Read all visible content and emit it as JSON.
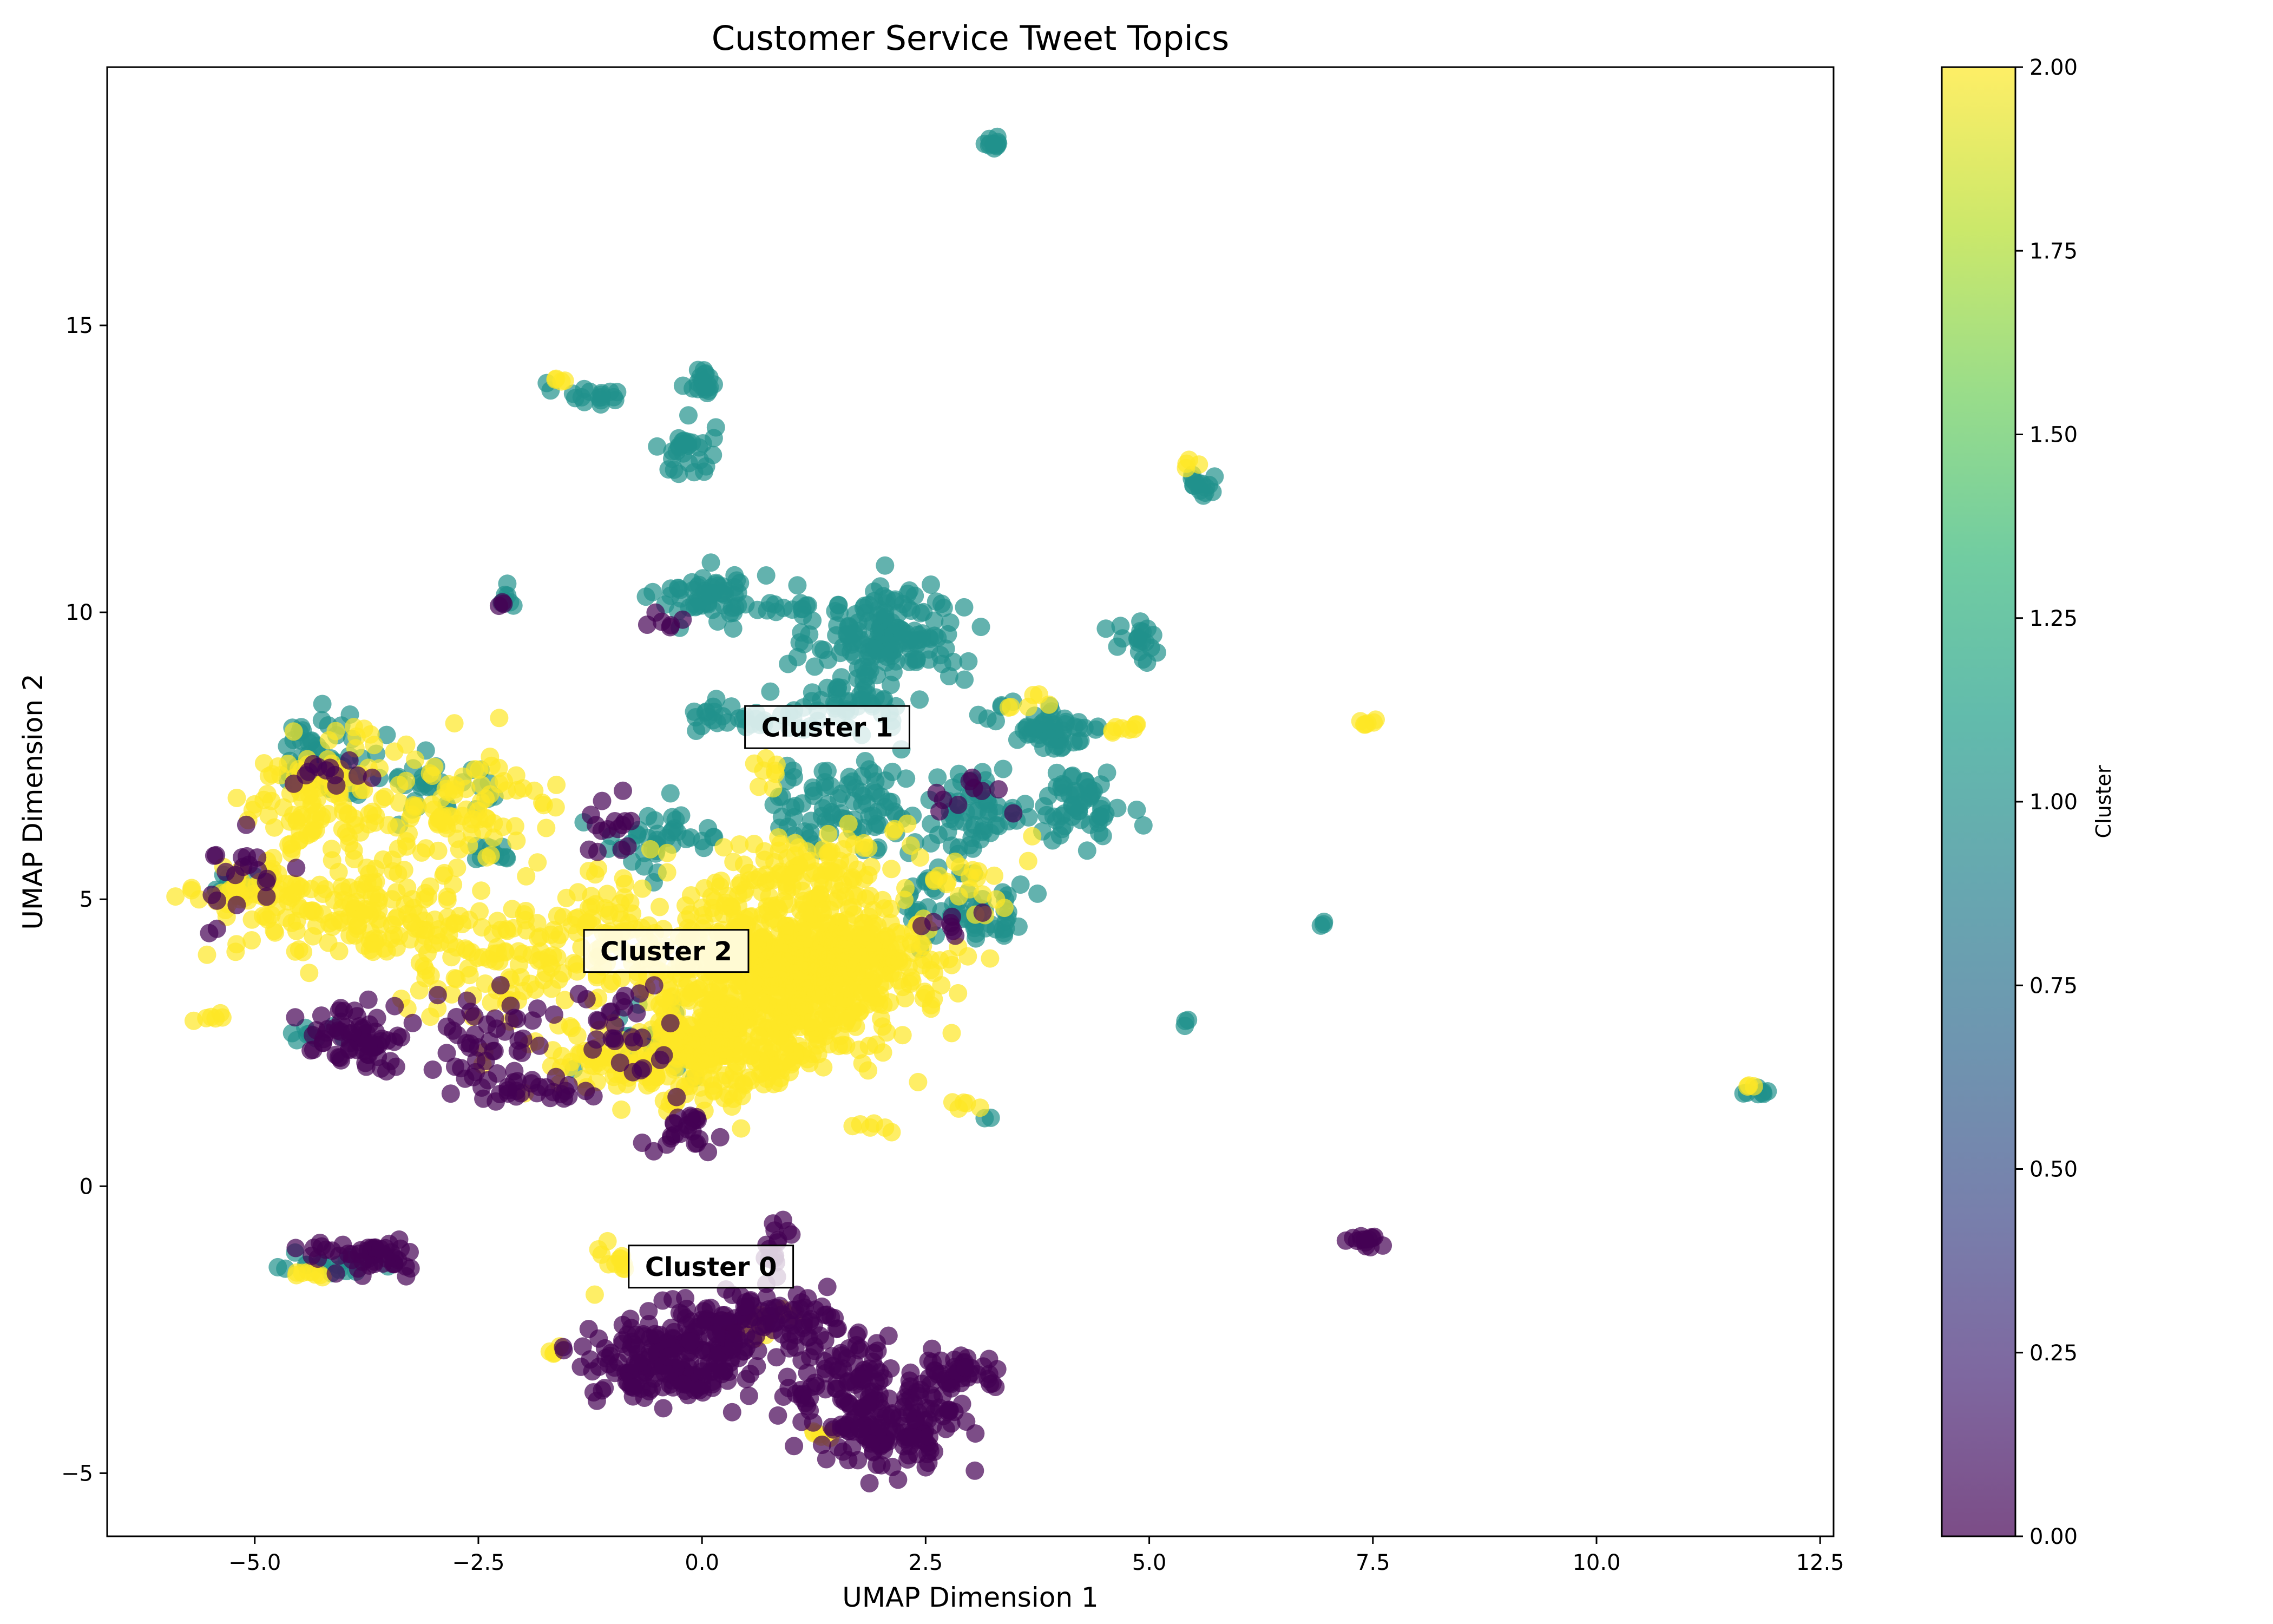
{
  "chart_data": {
    "type": "scatter",
    "title": "Customer Service Tweet Topics",
    "xlabel": "UMAP Dimension 1",
    "ylabel": "UMAP Dimension 2",
    "xlim": [
      -6.65,
      12.65
    ],
    "ylim": [
      -6.1,
      19.5
    ],
    "xticks": [
      -5.0,
      -2.5,
      0.0,
      2.5,
      5.0,
      7.5,
      10.0,
      12.5
    ],
    "xtick_labels": [
      "−5.0",
      "−2.5",
      "0.0",
      "2.5",
      "5.0",
      "7.5",
      "10.0",
      "12.5"
    ],
    "yticks": [
      -5,
      0,
      5,
      10,
      15
    ],
    "ytick_labels": [
      "−5",
      "0",
      "5",
      "10",
      "15"
    ],
    "grid": false,
    "legend": "none",
    "colormap": "viridis",
    "colorbar": {
      "label": "Cluster",
      "range": [
        0.0,
        2.0
      ],
      "ticks": [
        0.0,
        0.25,
        0.5,
        0.75,
        1.0,
        1.25,
        1.5,
        1.75,
        2.0
      ],
      "tick_labels": [
        "0.00",
        "0.25",
        "0.50",
        "0.75",
        "1.00",
        "1.25",
        "1.50",
        "1.75",
        "2.00"
      ],
      "colors": [
        "#440154",
        "#482878",
        "#3e4a89",
        "#31688e",
        "#26828e",
        "#1f9e89",
        "#35b779",
        "#6ece58",
        "#b5de2b",
        "#fde725"
      ]
    },
    "cluster_colors": {
      "0": "#440154",
      "1": "#21918c",
      "2": "#fde725"
    },
    "annotations": [
      {
        "text": "Cluster 0",
        "x": 0.1,
        "y": -1.4
      },
      {
        "text": "Cluster 1",
        "x": 1.4,
        "y": 8.0
      },
      {
        "text": "Cluster 2",
        "x": -0.4,
        "y": 4.1
      }
    ],
    "series": [
      {
        "cluster": 1,
        "regions": [
          {
            "cx": 3.25,
            "cy": 18.2,
            "sx": 0.05,
            "sy": 0.06,
            "n": 12
          },
          {
            "cx": 0.0,
            "cy": 14.0,
            "sx": 0.1,
            "sy": 0.15,
            "n": 20
          },
          {
            "cx": -1.3,
            "cy": 13.8,
            "sx": 0.18,
            "sy": 0.1,
            "n": 18
          },
          {
            "cx": -0.15,
            "cy": 12.8,
            "sx": 0.15,
            "sy": 0.25,
            "n": 30
          },
          {
            "cx": 5.6,
            "cy": 12.2,
            "sx": 0.1,
            "sy": 0.15,
            "n": 15
          },
          {
            "cx": -2.2,
            "cy": 10.3,
            "sx": 0.05,
            "sy": 0.1,
            "n": 8
          },
          {
            "cx": 0.1,
            "cy": 10.3,
            "sx": 0.3,
            "sy": 0.22,
            "n": 60
          },
          {
            "cx": 0.9,
            "cy": 10.1,
            "sx": 0.2,
            "sy": 0.05,
            "n": 12
          },
          {
            "cx": 2.1,
            "cy": 9.6,
            "sx": 0.4,
            "sy": 0.45,
            "n": 160
          },
          {
            "cx": 1.5,
            "cy": 8.4,
            "sx": 0.5,
            "sy": 0.25,
            "n": 55
          },
          {
            "cx": 0.4,
            "cy": 8.2,
            "sx": 0.3,
            "sy": 0.15,
            "n": 25
          },
          {
            "cx": 4.9,
            "cy": 9.4,
            "sx": 0.15,
            "sy": 0.2,
            "n": 20
          },
          {
            "cx": 3.9,
            "cy": 8.0,
            "sx": 0.3,
            "sy": 0.2,
            "n": 55
          },
          {
            "cx": 4.2,
            "cy": 6.6,
            "sx": 0.25,
            "sy": 0.35,
            "n": 60
          },
          {
            "cx": 3.1,
            "cy": 6.6,
            "sx": 0.3,
            "sy": 0.35,
            "n": 55
          },
          {
            "cx": 1.6,
            "cy": 6.6,
            "sx": 0.45,
            "sy": 0.4,
            "n": 90
          },
          {
            "cx": 2.9,
            "cy": 5.0,
            "sx": 0.3,
            "sy": 0.35,
            "n": 45
          },
          {
            "cx": 3.2,
            "cy": 4.5,
            "sx": 0.25,
            "sy": 0.1,
            "n": 15
          },
          {
            "cx": -4.2,
            "cy": 7.5,
            "sx": 0.3,
            "sy": 0.35,
            "n": 60
          },
          {
            "cx": -3.0,
            "cy": 7.0,
            "sx": 0.4,
            "sy": 0.25,
            "n": 30
          },
          {
            "cx": -2.3,
            "cy": 5.8,
            "sx": 0.15,
            "sy": 0.1,
            "n": 10
          },
          {
            "cx": -0.5,
            "cy": 6.0,
            "sx": 0.4,
            "sy": 0.3,
            "n": 40
          },
          {
            "cx": 6.95,
            "cy": 4.6,
            "sx": 0.03,
            "sy": 0.03,
            "n": 3
          },
          {
            "cx": 5.4,
            "cy": 2.85,
            "sx": 0.03,
            "sy": 0.03,
            "n": 3
          },
          {
            "cx": 11.8,
            "cy": 1.65,
            "sx": 0.08,
            "sy": 0.05,
            "n": 8
          },
          {
            "cx": -5.1,
            "cy": 5.3,
            "sx": 0.15,
            "sy": 0.1,
            "n": 10
          },
          {
            "cx": -4.4,
            "cy": 2.6,
            "sx": 0.15,
            "sy": 0.1,
            "n": 8
          },
          {
            "cx": -4.1,
            "cy": -1.4,
            "sx": 0.35,
            "sy": 0.1,
            "n": 18
          },
          {
            "cx": -0.5,
            "cy": 2.5,
            "sx": 0.5,
            "sy": 0.4,
            "n": 25
          },
          {
            "cx": 3.2,
            "cy": 1.2,
            "sx": 0.02,
            "sy": 0.02,
            "n": 2
          }
        ]
      },
      {
        "cluster": 2,
        "regions": [
          {
            "cx": -4.2,
            "cy": 6.7,
            "sx": 0.45,
            "sy": 0.55,
            "n": 130
          },
          {
            "cx": -5.0,
            "cy": 5.1,
            "sx": 0.4,
            "sy": 0.2,
            "n": 40
          },
          {
            "cx": -3.8,
            "cy": 4.8,
            "sx": 0.7,
            "sy": 0.45,
            "n": 150
          },
          {
            "cx": -2.6,
            "cy": 6.5,
            "sx": 0.5,
            "sy": 0.5,
            "n": 80
          },
          {
            "cx": -2.2,
            "cy": 3.9,
            "sx": 0.6,
            "sy": 0.45,
            "n": 90
          },
          {
            "cx": -1.0,
            "cy": 4.5,
            "sx": 0.5,
            "sy": 0.5,
            "n": 80
          },
          {
            "cx": 0.8,
            "cy": 3.6,
            "sx": 0.75,
            "sy": 0.8,
            "n": 650
          },
          {
            "cx": 0.1,
            "cy": 2.3,
            "sx": 0.55,
            "sy": 0.45,
            "n": 200
          },
          {
            "cx": 1.8,
            "cy": 4.2,
            "sx": 0.45,
            "sy": 0.55,
            "n": 160
          },
          {
            "cx": 1.2,
            "cy": 5.6,
            "sx": 0.5,
            "sy": 0.35,
            "n": 80
          },
          {
            "cx": -1.0,
            "cy": 2.2,
            "sx": 0.7,
            "sy": 0.3,
            "n": 60
          },
          {
            "cx": -1.55,
            "cy": 14.05,
            "sx": 0.05,
            "sy": 0.03,
            "n": 4
          },
          {
            "cx": 5.45,
            "cy": 12.6,
            "sx": 0.04,
            "sy": 0.05,
            "n": 4
          },
          {
            "cx": 7.4,
            "cy": 8.1,
            "sx": 0.06,
            "sy": 0.03,
            "n": 6
          },
          {
            "cx": 4.7,
            "cy": 8.0,
            "sx": 0.12,
            "sy": 0.05,
            "n": 8
          },
          {
            "cx": 2.0,
            "cy": 1.0,
            "sx": 0.15,
            "sy": 0.08,
            "n": 6
          },
          {
            "cx": 2.9,
            "cy": 1.4,
            "sx": 0.1,
            "sy": 0.05,
            "n": 5
          },
          {
            "cx": 11.7,
            "cy": 1.75,
            "sx": 0.03,
            "sy": 0.03,
            "n": 3
          },
          {
            "cx": -5.5,
            "cy": 2.9,
            "sx": 0.12,
            "sy": 0.08,
            "n": 6
          },
          {
            "cx": -4.4,
            "cy": -1.55,
            "sx": 0.12,
            "sy": 0.06,
            "n": 8
          },
          {
            "cx": -1.0,
            "cy": -1.3,
            "sx": 0.12,
            "sy": 0.2,
            "n": 12
          },
          {
            "cx": -1.6,
            "cy": -2.9,
            "sx": 0.06,
            "sy": 0.04,
            "n": 4
          },
          {
            "cx": 1.3,
            "cy": -4.3,
            "sx": 0.1,
            "sy": 0.05,
            "n": 6
          },
          {
            "cx": 0.6,
            "cy": -2.4,
            "sx": 0.25,
            "sy": 0.2,
            "n": 15
          },
          {
            "cx": 0.7,
            "cy": 7.2,
            "sx": 0.15,
            "sy": 0.15,
            "n": 8
          },
          {
            "cx": 3.5,
            "cy": 8.5,
            "sx": 0.2,
            "sy": 0.1,
            "n": 6
          },
          {
            "cx": 3.0,
            "cy": 5.5,
            "sx": 0.3,
            "sy": 0.3,
            "n": 20
          }
        ]
      },
      {
        "cluster": 0,
        "regions": [
          {
            "cx": -0.3,
            "cy": -3.0,
            "sx": 0.45,
            "sy": 0.4,
            "n": 220
          },
          {
            "cx": 0.6,
            "cy": -2.3,
            "sx": 0.4,
            "sy": 0.25,
            "n": 80
          },
          {
            "cx": 1.5,
            "cy": -3.2,
            "sx": 0.35,
            "sy": 0.4,
            "n": 90
          },
          {
            "cx": 2.2,
            "cy": -4.2,
            "sx": 0.4,
            "sy": 0.35,
            "n": 150
          },
          {
            "cx": 2.9,
            "cy": -3.2,
            "sx": 0.25,
            "sy": 0.15,
            "n": 40
          },
          {
            "cx": 0.9,
            "cy": -1.1,
            "sx": 0.15,
            "sy": 0.3,
            "n": 15
          },
          {
            "cx": -3.7,
            "cy": -1.2,
            "sx": 0.3,
            "sy": 0.15,
            "n": 50
          },
          {
            "cx": -3.8,
            "cy": 2.6,
            "sx": 0.3,
            "sy": 0.25,
            "n": 70
          },
          {
            "cx": -2.5,
            "cy": 2.6,
            "sx": 0.3,
            "sy": 0.4,
            "n": 40
          },
          {
            "cx": -2.0,
            "cy": 1.7,
            "sx": 0.35,
            "sy": 0.12,
            "n": 30
          },
          {
            "cx": -1.0,
            "cy": 2.8,
            "sx": 0.4,
            "sy": 0.4,
            "n": 30
          },
          {
            "cx": -0.1,
            "cy": 1.0,
            "sx": 0.25,
            "sy": 0.2,
            "n": 25
          },
          {
            "cx": 7.4,
            "cy": -0.95,
            "sx": 0.1,
            "sy": 0.06,
            "n": 14
          },
          {
            "cx": -5.2,
            "cy": 5.5,
            "sx": 0.25,
            "sy": 0.4,
            "n": 20
          },
          {
            "cx": -4.2,
            "cy": 7.3,
            "sx": 0.2,
            "sy": 0.2,
            "n": 12
          },
          {
            "cx": -1.0,
            "cy": 6.3,
            "sx": 0.2,
            "sy": 0.25,
            "n": 15
          },
          {
            "cx": -0.4,
            "cy": 9.9,
            "sx": 0.1,
            "sy": 0.1,
            "n": 6
          },
          {
            "cx": 3.0,
            "cy": 6.8,
            "sx": 0.2,
            "sy": 0.2,
            "n": 10
          },
          {
            "cx": 2.8,
            "cy": 4.6,
            "sx": 0.15,
            "sy": 0.1,
            "n": 8
          },
          {
            "cx": -2.2,
            "cy": 10.2,
            "sx": 0.04,
            "sy": 0.05,
            "n": 3
          }
        ]
      }
    ]
  }
}
